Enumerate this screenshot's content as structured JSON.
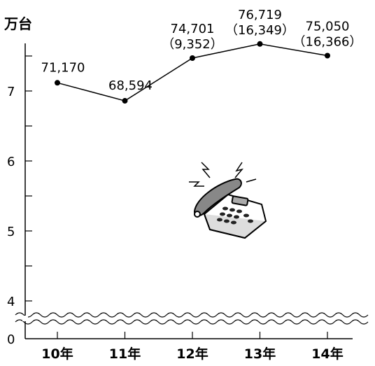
{
  "chart_data": {
    "type": "line",
    "unit_label": "万台",
    "categories": [
      "10年",
      "11年",
      "12年",
      "13年",
      "14年"
    ],
    "values": [
      71170,
      68594,
      74701,
      76719,
      75050
    ],
    "value_labels": [
      "71,170",
      "68,594",
      "74,701",
      "76,719",
      "75,050"
    ],
    "sub_labels": [
      "",
      "",
      "9,352",
      "16,349",
      "16,366"
    ],
    "y_ticks": [
      {
        "value": 70000,
        "label": "7"
      },
      {
        "value": 60000,
        "label": "6"
      },
      {
        "value": 50000,
        "label": "5"
      },
      {
        "value": 40000,
        "label": "4"
      },
      {
        "value": 0,
        "label": "0"
      }
    ],
    "axis_break": true,
    "grid": false
  }
}
